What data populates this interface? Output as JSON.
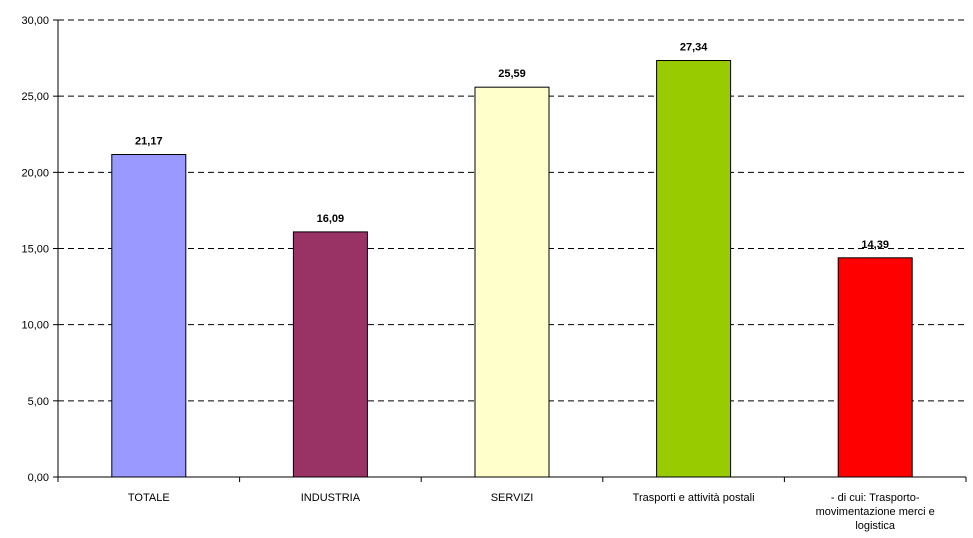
{
  "chart_data": {
    "type": "bar",
    "title": "",
    "xlabel": "",
    "ylabel": "",
    "ylim": [
      0,
      30
    ],
    "ytick_step": 5,
    "ytick_labels": [
      "0,00",
      "5,00",
      "10,00",
      "15,00",
      "20,00",
      "25,00",
      "30,00"
    ],
    "grid": "horizontal-dashed",
    "categories": [
      "TOTALE",
      "INDUSTRIA",
      "SERVIZI",
      "Trasporti e attività postali",
      "- di cui: Trasporto-movimentazione merci e logistica"
    ],
    "category_label_lines": [
      [
        "TOTALE"
      ],
      [
        "INDUSTRIA"
      ],
      [
        "SERVIZI"
      ],
      [
        "Trasporti e attività postali"
      ],
      [
        "- di cui: Trasporto-",
        "movimentazione merci e",
        "logistica"
      ]
    ],
    "values": [
      21.17,
      16.09,
      25.59,
      27.34,
      14.39
    ],
    "value_labels": [
      "21,17",
      "16,09",
      "25,59",
      "27,34",
      "14,39"
    ],
    "colors": [
      "#9999FF",
      "#993366",
      "#FFFFCC",
      "#99CC00",
      "#FF0000"
    ]
  }
}
